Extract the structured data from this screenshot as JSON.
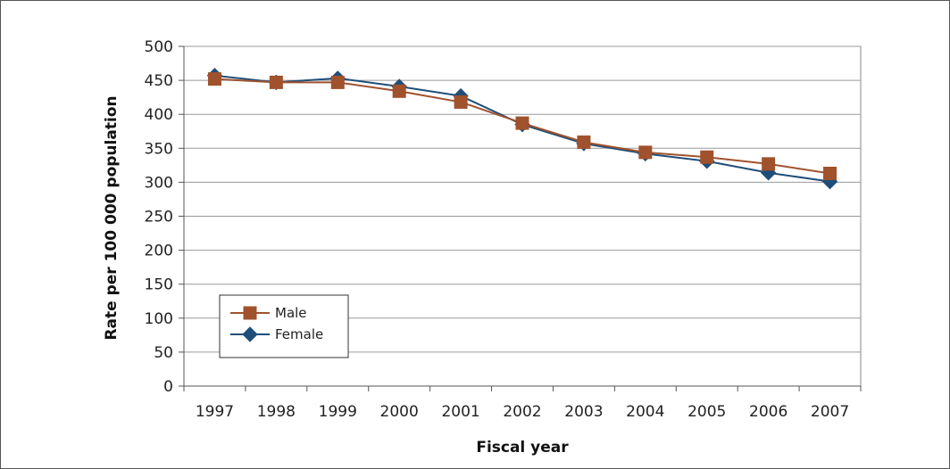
{
  "chart_data": {
    "type": "line",
    "title": "",
    "xlabel": "Fiscal year",
    "ylabel": "Rate per 100 000 population",
    "ylim": [
      0,
      500
    ],
    "yticks": [
      0,
      50,
      100,
      150,
      200,
      250,
      300,
      350,
      400,
      450,
      500
    ],
    "grid": true,
    "legend_position": "bottom-left",
    "categories": [
      "1997",
      "1998",
      "1999",
      "2000",
      "2001",
      "2002",
      "2003",
      "2004",
      "2005",
      "2006",
      "2007"
    ],
    "series": [
      {
        "name": "Male",
        "color": "#A0522D",
        "marker": "square",
        "values": [
          452,
          447,
          447,
          434,
          418,
          387,
          359,
          344,
          337,
          327,
          313
        ]
      },
      {
        "name": "Female",
        "color": "#1F4E79",
        "marker": "diamond",
        "values": [
          457,
          447,
          453,
          441,
          427,
          385,
          357,
          342,
          331,
          314,
          301
        ]
      }
    ]
  }
}
